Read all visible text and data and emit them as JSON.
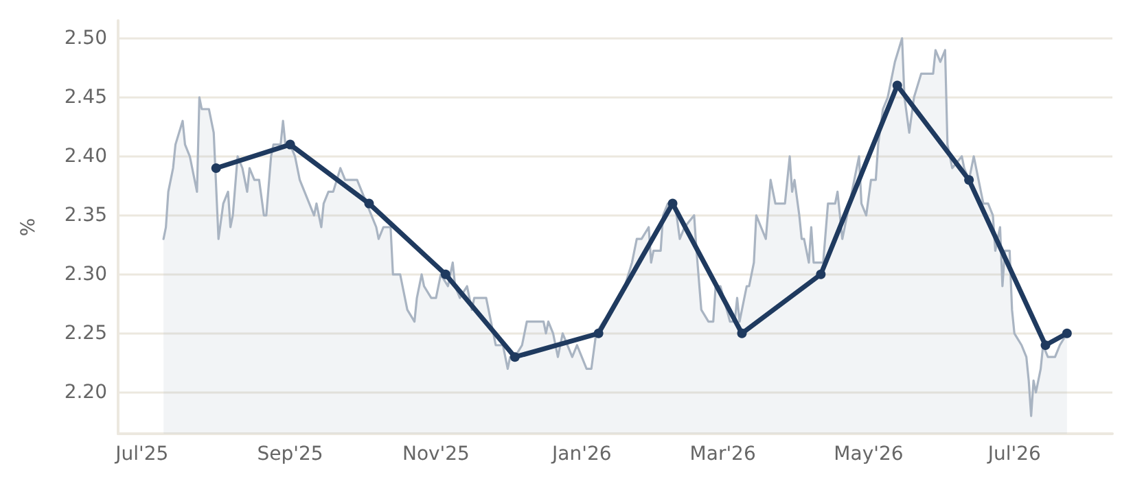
{
  "chart_data": {
    "type": "line",
    "ylabel": "%",
    "xlim": [
      "2025-06-21",
      "2026-08-11"
    ],
    "ylim": [
      2.165,
      2.515
    ],
    "xticks": [
      {
        "value": "2025-07-01",
        "label": "Jul'25"
      },
      {
        "value": "2025-09-01",
        "label": "Sep'25"
      },
      {
        "value": "2025-11-01",
        "label": "Nov'25"
      },
      {
        "value": "2026-01-01",
        "label": "Jan'26"
      },
      {
        "value": "2026-03-01",
        "label": "Mar'26"
      },
      {
        "value": "2026-05-01",
        "label": "May'26"
      },
      {
        "value": "2026-07-01",
        "label": "Jul'26"
      }
    ],
    "yticks": [
      {
        "value": 2.2,
        "label": "2.20"
      },
      {
        "value": 2.25,
        "label": "2.25"
      },
      {
        "value": 2.3,
        "label": "2.30"
      },
      {
        "value": 2.35,
        "label": "2.35"
      },
      {
        "value": 2.4,
        "label": "2.40"
      },
      {
        "value": 2.45,
        "label": "2.45"
      },
      {
        "value": 2.5,
        "label": "2.50"
      }
    ],
    "grid": "y",
    "series": [
      {
        "type": "area",
        "color": "#a9b4c2",
        "marker": "none",
        "x": [
          "2025-07-10",
          "2025-07-11",
          "2025-07-12",
          "2025-07-14",
          "2025-07-15",
          "2025-07-18",
          "2025-07-19",
          "2025-07-21",
          "2025-07-24",
          "2025-07-25",
          "2025-07-26",
          "2025-07-29",
          "2025-07-31",
          "2025-08-02",
          "2025-08-04",
          "2025-08-06",
          "2025-08-07",
          "2025-08-08",
          "2025-08-10",
          "2025-08-12",
          "2025-08-14",
          "2025-08-15",
          "2025-08-17",
          "2025-08-19",
          "2025-08-21",
          "2025-08-22",
          "2025-08-24",
          "2025-08-25",
          "2025-08-28",
          "2025-08-29",
          "2025-08-30",
          "2025-09-01",
          "2025-09-03",
          "2025-09-05",
          "2025-09-07",
          "2025-09-09",
          "2025-09-11",
          "2025-09-12",
          "2025-09-14",
          "2025-09-15",
          "2025-09-17",
          "2025-09-19",
          "2025-09-22",
          "2025-09-24",
          "2025-09-26",
          "2025-09-29",
          "2025-10-03",
          "2025-10-05",
          "2025-10-07",
          "2025-10-08",
          "2025-10-10",
          "2025-10-13",
          "2025-10-14",
          "2025-10-17",
          "2025-10-20",
          "2025-10-23",
          "2025-10-24",
          "2025-10-26",
          "2025-10-27",
          "2025-10-30",
          "2025-11-01",
          "2025-11-03",
          "2025-11-06",
          "2025-11-08",
          "2025-11-09",
          "2025-11-11",
          "2025-11-14",
          "2025-11-16",
          "2025-11-17",
          "2025-11-22",
          "2025-11-23",
          "2025-11-24",
          "2025-11-26",
          "2025-11-29",
          "2025-12-01",
          "2025-12-02",
          "2025-12-04",
          "2025-12-07",
          "2025-12-09",
          "2025-12-12",
          "2025-12-16",
          "2025-12-17",
          "2025-12-18",
          "2025-12-20",
          "2025-12-22",
          "2025-12-24",
          "2025-12-26",
          "2025-12-28",
          "2025-12-30",
          "2026-01-01",
          "2026-01-03",
          "2026-01-05",
          "2026-01-07",
          "2026-01-10",
          "2026-01-14",
          "2026-01-16",
          "2026-01-19",
          "2026-01-22",
          "2026-01-24",
          "2026-01-26",
          "2026-01-29",
          "2026-01-30",
          "2026-01-31",
          "2026-02-03",
          "2026-02-04",
          "2026-02-06",
          "2026-02-09",
          "2026-02-11",
          "2026-02-13",
          "2026-02-17",
          "2026-02-18",
          "2026-02-20",
          "2026-02-23",
          "2026-02-25",
          "2026-02-26",
          "2026-02-28",
          "2026-03-04",
          "2026-03-06",
          "2026-03-07",
          "2026-03-08",
          "2026-03-11",
          "2026-03-12",
          "2026-03-14",
          "2026-03-15",
          "2026-03-17",
          "2026-03-19",
          "2026-03-21",
          "2026-03-23",
          "2026-03-26",
          "2026-03-27",
          "2026-03-29",
          "2026-03-30",
          "2026-03-31",
          "2026-04-02",
          "2026-04-03",
          "2026-04-04",
          "2026-04-06",
          "2026-04-07",
          "2026-04-08",
          "2026-04-12",
          "2026-04-14",
          "2026-04-17",
          "2026-04-18",
          "2026-04-19",
          "2026-04-20",
          "2026-04-23",
          "2026-04-25",
          "2026-04-27",
          "2026-04-28",
          "2026-04-30",
          "2026-05-02",
          "2026-05-04",
          "2026-05-05",
          "2026-05-07",
          "2026-05-09",
          "2026-05-12",
          "2026-05-15",
          "2026-05-16",
          "2026-05-18",
          "2026-05-20",
          "2026-05-23",
          "2026-05-28",
          "2026-05-29",
          "2026-05-31",
          "2026-06-02",
          "2026-06-03",
          "2026-06-05",
          "2026-06-09",
          "2026-06-10",
          "2026-06-12",
          "2026-06-14",
          "2026-06-15",
          "2026-06-18",
          "2026-06-20",
          "2026-06-22",
          "2026-06-23",
          "2026-06-25",
          "2026-06-26",
          "2026-06-27",
          "2026-06-29",
          "2026-06-30",
          "2026-07-01",
          "2026-07-04",
          "2026-07-06",
          "2026-07-07",
          "2026-07-08",
          "2026-07-09",
          "2026-07-10",
          "2026-07-12",
          "2026-07-13",
          "2026-07-15",
          "2026-07-18",
          "2026-07-20",
          "2026-07-23"
        ],
        "values": [
          2.33,
          2.34,
          2.37,
          2.39,
          2.41,
          2.43,
          2.41,
          2.4,
          2.37,
          2.45,
          2.44,
          2.44,
          2.42,
          2.33,
          2.36,
          2.37,
          2.34,
          2.35,
          2.4,
          2.39,
          2.37,
          2.39,
          2.38,
          2.38,
          2.35,
          2.35,
          2.4,
          2.41,
          2.41,
          2.43,
          2.41,
          2.41,
          2.4,
          2.38,
          2.37,
          2.36,
          2.35,
          2.36,
          2.34,
          2.36,
          2.37,
          2.37,
          2.39,
          2.38,
          2.38,
          2.38,
          2.36,
          2.35,
          2.34,
          2.33,
          2.34,
          2.34,
          2.3,
          2.3,
          2.27,
          2.26,
          2.28,
          2.3,
          2.29,
          2.28,
          2.28,
          2.3,
          2.29,
          2.31,
          2.29,
          2.28,
          2.29,
          2.27,
          2.28,
          2.28,
          2.27,
          2.26,
          2.24,
          2.24,
          2.22,
          2.23,
          2.23,
          2.24,
          2.26,
          2.26,
          2.26,
          2.25,
          2.26,
          2.25,
          2.23,
          2.25,
          2.24,
          2.23,
          2.24,
          2.23,
          2.22,
          2.22,
          2.25,
          2.26,
          2.27,
          2.28,
          2.29,
          2.31,
          2.33,
          2.33,
          2.34,
          2.31,
          2.32,
          2.32,
          2.35,
          2.36,
          2.36,
          2.33,
          2.34,
          2.35,
          2.32,
          2.27,
          2.26,
          2.26,
          2.29,
          2.29,
          2.26,
          2.26,
          2.28,
          2.26,
          2.29,
          2.29,
          2.31,
          2.35,
          2.34,
          2.33,
          2.38,
          2.36,
          2.36,
          2.36,
          2.4,
          2.37,
          2.38,
          2.35,
          2.33,
          2.33,
          2.31,
          2.34,
          2.31,
          2.31,
          2.36,
          2.36,
          2.37,
          2.35,
          2.33,
          2.36,
          2.38,
          2.4,
          2.36,
          2.35,
          2.38,
          2.38,
          2.41,
          2.44,
          2.45,
          2.48,
          2.5,
          2.45,
          2.42,
          2.45,
          2.47,
          2.47,
          2.49,
          2.48,
          2.49,
          2.41,
          2.39,
          2.4,
          2.39,
          2.38,
          2.4,
          2.39,
          2.36,
          2.36,
          2.35,
          2.32,
          2.34,
          2.29,
          2.32,
          2.32,
          2.27,
          2.25,
          2.24,
          2.23,
          2.21,
          2.18,
          2.21,
          2.2,
          2.22,
          2.24,
          2.23,
          2.23,
          2.24,
          2.25
        ]
      },
      {
        "color": "#1f3a5f",
        "marker": "circle",
        "x": [
          "2025-08-01",
          "2025-09-01",
          "2025-10-04",
          "2025-11-05",
          "2025-12-04",
          "2026-01-08",
          "2026-02-08",
          "2026-03-09",
          "2026-04-11",
          "2026-05-13",
          "2026-06-12",
          "2026-07-14",
          "2026-07-23"
        ],
        "values": [
          2.39,
          2.41,
          2.36,
          2.3,
          2.23,
          2.25,
          2.36,
          2.25,
          2.3,
          2.46,
          2.38,
          2.24,
          2.25
        ]
      }
    ]
  }
}
